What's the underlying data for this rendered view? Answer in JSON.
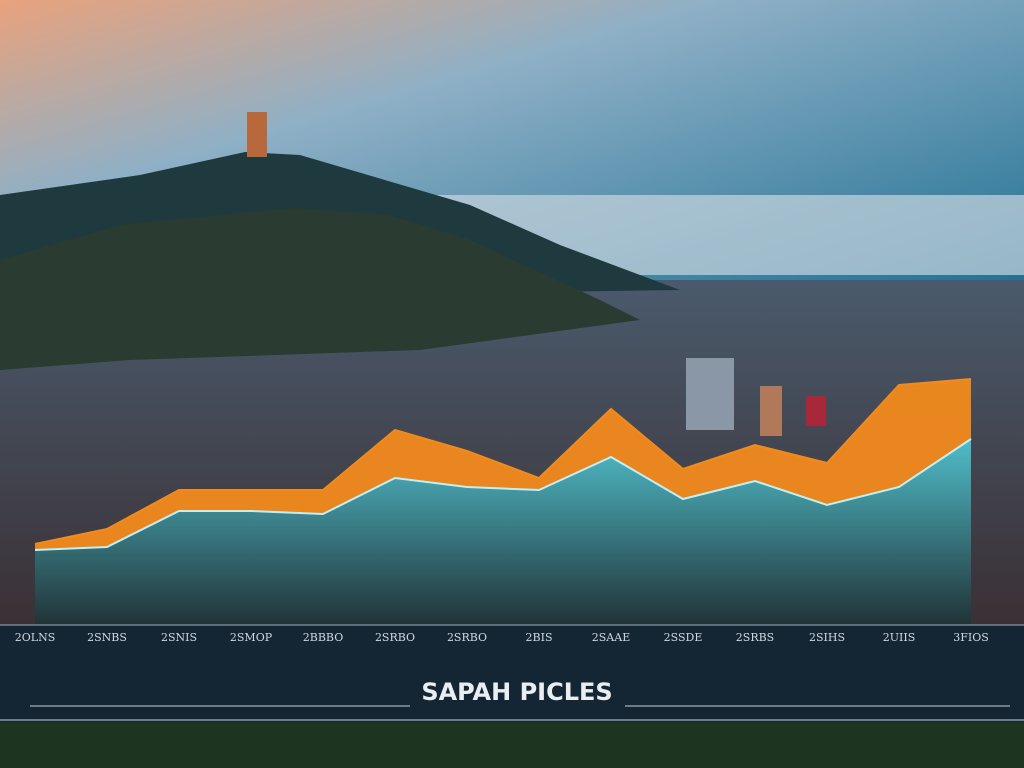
{
  "chart_data": {
    "type": "area",
    "title": "SAPAH PICLES",
    "categories": [
      "2OLNS",
      "2SNBS",
      "2SNIS",
      "2SMOP",
      "2BBBO",
      "2SRBO",
      "2SRBO",
      "2BIS",
      "2SAAE",
      "2SSDE",
      "2SRBS",
      "2SIHS",
      "2UIIS",
      "3FIOS"
    ],
    "series": [
      {
        "color": "#f28a1c",
        "values": [
          27,
          32,
          45,
          45,
          45,
          65,
          58,
          49,
          72,
          52,
          60,
          54,
          80,
          82
        ]
      },
      {
        "color": "#37b6cf",
        "values": [
          25,
          26,
          38,
          38,
          37,
          49,
          46,
          45,
          56,
          42,
          48,
          40,
          46,
          62
        ]
      }
    ],
    "ylim": [
      0,
      100
    ]
  }
}
